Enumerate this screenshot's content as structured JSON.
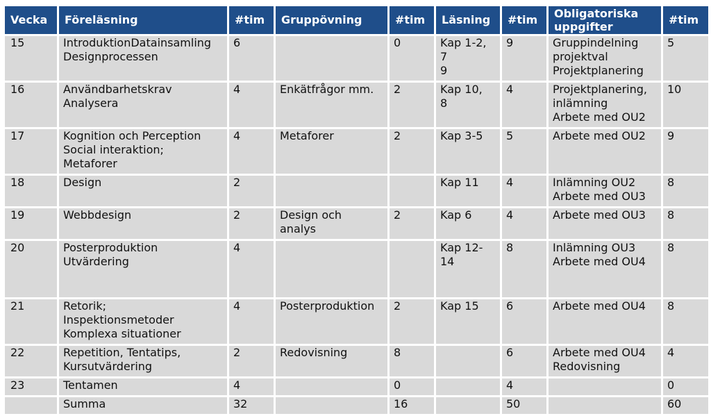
{
  "table": {
    "headers": [
      "Vecka",
      "Föreläsning",
      "#tim",
      "Gruppövning",
      "#tim",
      "Läsning",
      "#tim",
      "Obligatoriska uppgifter",
      "#tim"
    ],
    "rows": [
      [
        "15",
        "IntroduktionDatainsamling\nDesignprocessen",
        "6",
        "",
        "0",
        "Kap 1-2,\n7\n9",
        "9",
        "Gruppindelning\nprojektval\nProjektplanering",
        "5"
      ],
      [
        "16",
        "Användbarhetskrav\nAnalysera",
        "4",
        "Enkätfrågor mm.",
        "2",
        "Kap 10,\n8",
        "4",
        "Projektplanering,\ninlämning\nArbete med OU2",
        "10"
      ],
      [
        "17",
        "Kognition och Perception\nSocial interaktion;\nMetaforer",
        "4",
        "Metaforer",
        "2",
        "Kap 3-5",
        "5",
        "Arbete med OU2",
        "9"
      ],
      [
        "18",
        "Design",
        "2",
        "",
        "",
        "Kap 11",
        "4",
        "Inlämning OU2\nArbete med OU3",
        "8"
      ],
      [
        "19",
        "Webbdesign",
        "2",
        "Design och\nanalys",
        "2",
        "Kap 6",
        "4",
        "Arbete med OU3",
        "8"
      ],
      [
        "20",
        "Posterproduktion\nUtvärdering",
        "4",
        "",
        "",
        "Kap 12-\n14",
        "8",
        "Inlämning OU3\nArbete med OU4",
        "8"
      ],
      [
        "21",
        "Retorik;\nInspektionsmetoder\nKomplexa situationer",
        "4",
        "Posterproduktion",
        "2",
        "Kap 15",
        "6",
        "Arbete med OU4",
        "8"
      ],
      [
        "22",
        "Repetition, Tentatips,\nKursutvärdering",
        "2",
        "Redovisning",
        "8",
        "",
        "6",
        "Arbete med OU4\nRedovisning",
        "4"
      ],
      [
        "23",
        "Tentamen",
        "4",
        "",
        "0",
        "",
        "4",
        "",
        "0"
      ],
      [
        "",
        "Summa",
        "32",
        "",
        "16",
        "",
        "50",
        "",
        "60"
      ]
    ]
  }
}
